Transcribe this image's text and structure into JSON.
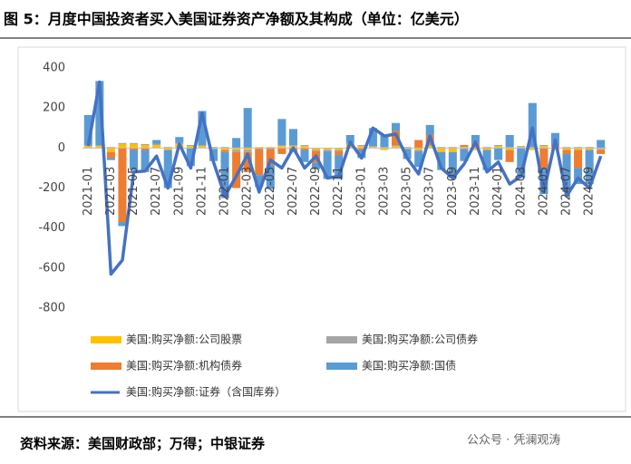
{
  "chart_data": {
    "type": "bar",
    "title": "图 5：月度中国投资者买入美国证券资产净额及其构成（单位：亿美元）",
    "source": "资料来源：美国财政部；万得；中银证券",
    "watermark": "公众号 · 凭澜观涛",
    "stacked": true,
    "grid": false,
    "categories": [
      "2021-01",
      null,
      "2021-03",
      null,
      "2021-05",
      null,
      "2021-07",
      null,
      "2021-09",
      null,
      "2021-11",
      null,
      "2022-01",
      null,
      "2022-03",
      null,
      "2022-05",
      null,
      "2022-07",
      null,
      "2022-09",
      null,
      "2022-11",
      null,
      "2023-01",
      null,
      "2023-03",
      null,
      "2023-05",
      null,
      "2023-07",
      null,
      "2023-09",
      null,
      "2023-11",
      null,
      "2024-01",
      null,
      "2024-03",
      null,
      "2024-05",
      null,
      "2024-07",
      null,
      "2024-09",
      null
    ],
    "ylim": [
      -800,
      400
    ],
    "yticks": [
      400,
      200,
      0,
      -200,
      -400,
      -600,
      -800
    ],
    "series": [
      {
        "name": "美国:购买净额:公司股票",
        "color": "#ffc000",
        "values": [
          10,
          10,
          -20,
          20,
          20,
          15,
          15,
          -10,
          20,
          10,
          10,
          -5,
          -10,
          -10,
          -10,
          5,
          5,
          10,
          10,
          10,
          -10,
          -10,
          -10,
          20,
          10,
          5,
          -10,
          10,
          -5,
          -10,
          10,
          -20,
          -20,
          5,
          -10,
          -10,
          10,
          -10,
          5,
          -10,
          10,
          -10,
          -10,
          -10,
          -10,
          -5
        ]
      },
      {
        "name": "美国:购买净额:公司债券",
        "color": "#a5a5a5",
        "values": [
          5,
          5,
          5,
          5,
          5,
          5,
          5,
          5,
          5,
          5,
          5,
          5,
          5,
          -10,
          -10,
          -5,
          -5,
          5,
          5,
          5,
          -5,
          -5,
          -5,
          5,
          5,
          5,
          5,
          5,
          5,
          -5,
          5,
          5,
          5,
          -5,
          5,
          5,
          5,
          5,
          5,
          5,
          5,
          5,
          5,
          5,
          5,
          -5
        ]
      },
      {
        "name": "美国:购买净额:机构债券",
        "color": "#ed7d31",
        "values": [
          0,
          0,
          -30,
          -370,
          -10,
          -10,
          0,
          0,
          0,
          0,
          0,
          0,
          -10,
          -180,
          -100,
          -130,
          -80,
          -30,
          -20,
          -10,
          -60,
          0,
          -20,
          0,
          -10,
          0,
          0,
          70,
          0,
          40,
          50,
          0,
          0,
          10,
          20,
          0,
          0,
          -60,
          0,
          0,
          -100,
          10,
          -20,
          -90,
          0,
          -20
        ]
      },
      {
        "name": "美国:购买净额:国债",
        "color": "#5b9bd5",
        "values": [
          150,
          320,
          -10,
          -20,
          -100,
          -110,
          20,
          -190,
          30,
          -90,
          170,
          -60,
          -230,
          50,
          200,
          -60,
          -120,
          130,
          80,
          -60,
          -30,
          -140,
          -120,
          40,
          -40,
          90,
          60,
          40,
          -50,
          -80,
          50,
          -90,
          -130,
          -60,
          40,
          -100,
          -60,
          60,
          -150,
          220,
          -130,
          60,
          -190,
          -80,
          -170,
          40
        ]
      },
      {
        "name": "美国:购买净额:证券（含国库券）",
        "color": "#4472c4",
        "type": "line",
        "values": [
          10,
          330,
          -630,
          -560,
          -120,
          -115,
          -40,
          -200,
          20,
          -100,
          175,
          -70,
          -240,
          -140,
          -30,
          -220,
          -60,
          -100,
          0,
          -100,
          -40,
          -150,
          -140,
          30,
          -50,
          100,
          60,
          70,
          -50,
          -130,
          60,
          -100,
          -150,
          -80,
          30,
          -120,
          -70,
          -180,
          -140,
          100,
          -220,
          40,
          -240,
          -150,
          -200,
          -40
        ]
      }
    ]
  }
}
